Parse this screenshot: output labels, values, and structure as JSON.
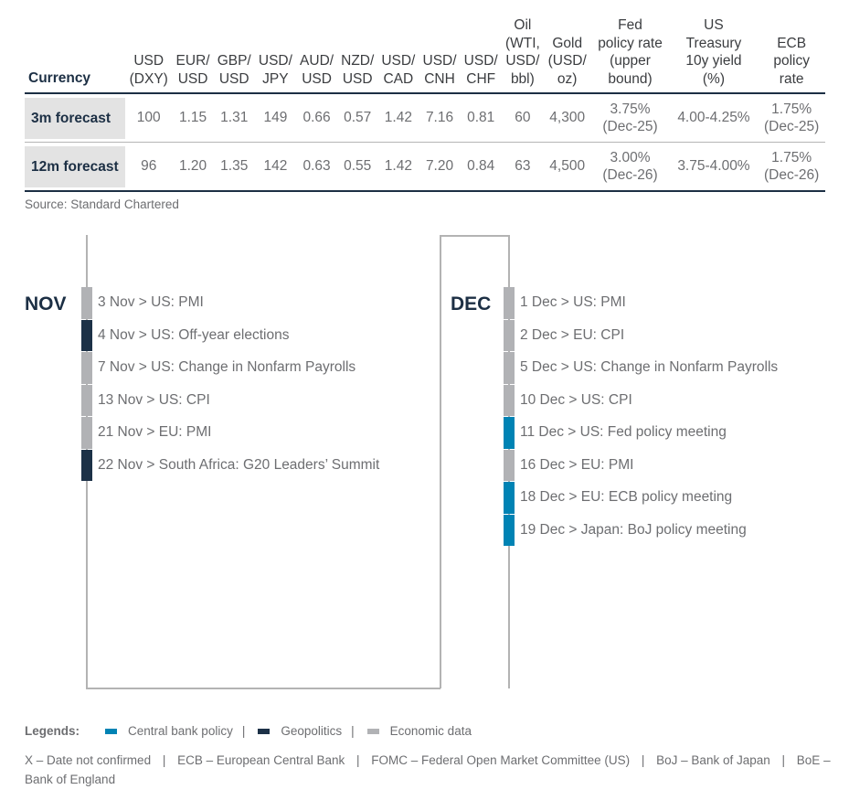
{
  "table": {
    "header_first": "Currency",
    "columns": [
      [
        "USD",
        "(DXY)"
      ],
      [
        "EUR/",
        "USD"
      ],
      [
        "GBP/",
        "USD"
      ],
      [
        "USD/",
        "JPY"
      ],
      [
        "AUD/",
        "USD"
      ],
      [
        "NZD/",
        "USD"
      ],
      [
        "USD/",
        "CAD"
      ],
      [
        "USD/",
        "CNH"
      ],
      [
        "USD/",
        "CHF"
      ],
      [
        "Oil",
        "(WTI,",
        "USD/",
        "bbl)"
      ],
      [
        "Gold",
        "(USD/",
        "oz)"
      ],
      [
        "Fed",
        "policy rate",
        "(upper",
        "bound)"
      ],
      [
        "US",
        "Treasury",
        "10y yield",
        "(%)"
      ],
      [
        "ECB",
        "policy",
        "rate"
      ]
    ],
    "rows": [
      {
        "label": "3m forecast",
        "values": [
          [
            "100"
          ],
          [
            "1.15"
          ],
          [
            "1.31"
          ],
          [
            "149"
          ],
          [
            "0.66"
          ],
          [
            "0.57"
          ],
          [
            "1.42"
          ],
          [
            "7.16"
          ],
          [
            "0.81"
          ],
          [
            "60"
          ],
          [
            "4,300"
          ],
          [
            "3.75%",
            "(Dec-25)"
          ],
          [
            "4.00-4.25%"
          ],
          [
            "1.75%",
            "(Dec-25)"
          ]
        ]
      },
      {
        "label": "12m forecast",
        "values": [
          [
            "96"
          ],
          [
            "1.20"
          ],
          [
            "1.35"
          ],
          [
            "142"
          ],
          [
            "0.63"
          ],
          [
            "0.55"
          ],
          [
            "1.42"
          ],
          [
            "7.20"
          ],
          [
            "0.84"
          ],
          [
            "63"
          ],
          [
            "4,500"
          ],
          [
            "3.00%",
            "(Dec-26)"
          ],
          [
            "3.75-4.00%"
          ],
          [
            "1.75%",
            "(Dec-26)"
          ]
        ]
      }
    ],
    "source": "Source: Standard Chartered"
  },
  "categories": {
    "central_bank": {
      "label": "Central bank policy",
      "color": "#0083b4"
    },
    "geopolitics": {
      "label": "Geopolitics",
      "color": "#1c3147"
    },
    "economic": {
      "label": "Economic data",
      "color": "#b1b2b5"
    }
  },
  "calendar": {
    "nov": {
      "label": "NOV",
      "events": [
        {
          "text": "3 Nov > US: PMI",
          "category": "economic"
        },
        {
          "text": "4 Nov > US: Off-year elections",
          "category": "geopolitics"
        },
        {
          "text": "7 Nov > US: Change in Nonfarm Payrolls",
          "category": "economic"
        },
        {
          "text": "13 Nov > US: CPI",
          "category": "economic"
        },
        {
          "text": "21 Nov > EU: PMI",
          "category": "economic"
        },
        {
          "text": "22 Nov > South Africa: G20 Leaders’ Summit",
          "category": "geopolitics"
        }
      ]
    },
    "dec": {
      "label": "DEC",
      "events": [
        {
          "text": "1 Dec > US: PMI",
          "category": "economic"
        },
        {
          "text": "2 Dec > EU: CPI",
          "category": "economic"
        },
        {
          "text": "5 Dec > US: Change in Nonfarm Payrolls",
          "category": "economic"
        },
        {
          "text": "10 Dec > US: CPI",
          "category": "economic"
        },
        {
          "text": "11 Dec > US: Fed policy meeting",
          "category": "central_bank"
        },
        {
          "text": "16 Dec > EU: PMI",
          "category": "economic"
        },
        {
          "text": "18 Dec > EU: ECB policy meeting",
          "category": "central_bank"
        },
        {
          "text": "19 Dec > Japan: BoJ policy meeting",
          "category": "central_bank"
        }
      ]
    }
  },
  "legend": {
    "title": "Legends:",
    "items": [
      {
        "label": "Central bank policy",
        "category": "central_bank"
      },
      {
        "label": "Geopolitics",
        "category": "geopolitics"
      },
      {
        "label": "Economic data",
        "category": "economic"
      }
    ],
    "separator": "|"
  },
  "notes": {
    "items": [
      "X – Date not confirmed",
      "ECB – European Central Bank",
      "FOMC – Federal Open Market Committee (US)",
      "BoJ – Bank of Japan",
      "BoE – Bank of England"
    ],
    "separator": "|"
  }
}
